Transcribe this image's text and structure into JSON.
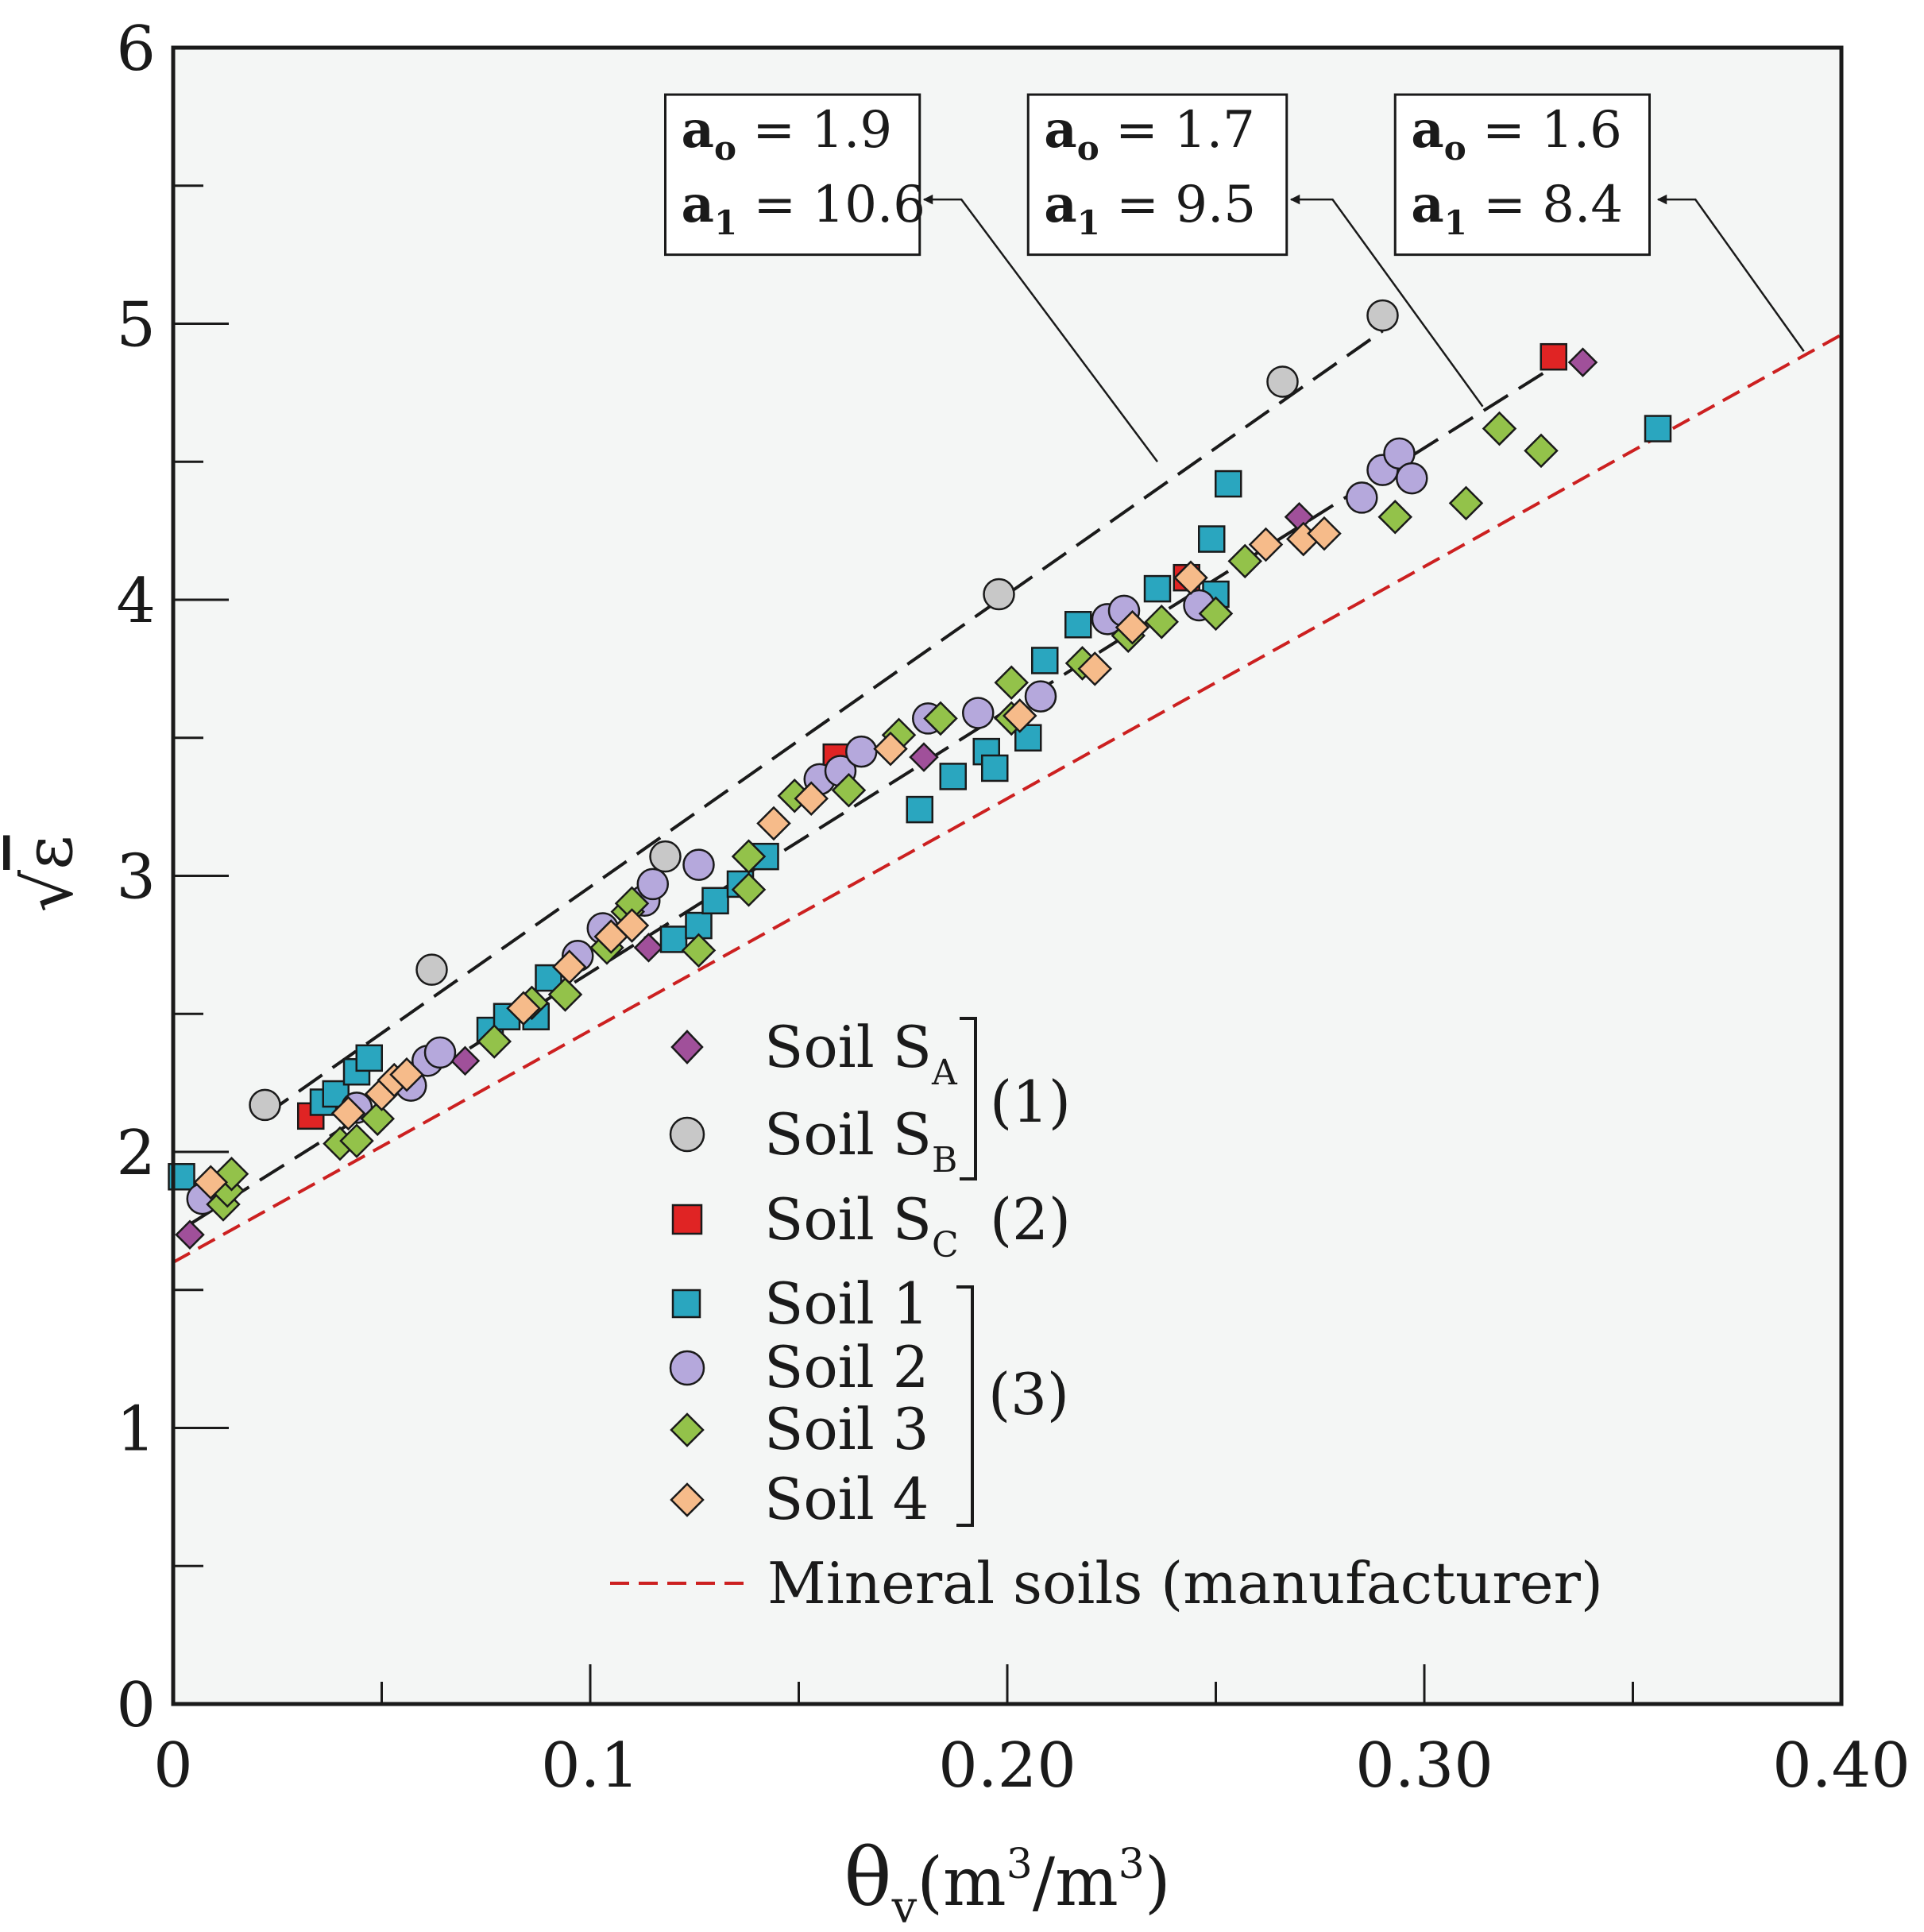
{
  "chart_data": {
    "type": "scatter",
    "title": "",
    "xlabel": {
      "symbol": "θ",
      "sub": "v",
      "unit_open": "(m",
      "unit_sup1": "3",
      "unit_mid": "/m",
      "unit_sup2": "3",
      "unit_close": ")"
    },
    "ylabel": {
      "radical": "√",
      "symbol": "ε"
    },
    "xlim": [
      0,
      0.4
    ],
    "ylim": [
      0,
      6
    ],
    "xticks": [
      {
        "value": 0,
        "label": "0"
      },
      {
        "value": 0.1,
        "label": "0.1"
      },
      {
        "value": 0.2,
        "label": "0.20"
      },
      {
        "value": 0.3,
        "label": "0.30"
      },
      {
        "value": 0.4,
        "label": "0.40"
      }
    ],
    "xminor": [
      0.05,
      0.15,
      0.25,
      0.35
    ],
    "yticks": [
      {
        "value": 0,
        "label": "0"
      },
      {
        "value": 1,
        "label": "1"
      },
      {
        "value": 2,
        "label": "2"
      },
      {
        "value": 3,
        "label": "3"
      },
      {
        "value": 4,
        "label": "4"
      },
      {
        "value": 5,
        "label": "5"
      },
      {
        "value": 6,
        "label": "6"
      }
    ],
    "yminor": [
      0.5,
      1.5,
      2.5,
      3.5,
      4.5,
      5.5
    ],
    "fit_lines": [
      {
        "name": "fit-1",
        "a0": 1.9,
        "a1": 10.6,
        "x": [
          0.022,
          0.29
        ],
        "color": "#1a1a1a",
        "dash": "36,16"
      },
      {
        "name": "fit-2",
        "a0": 1.7,
        "a1": 9.5,
        "x": [
          0.004,
          0.332
        ],
        "color": "#1a1a1a",
        "dash": "36,16"
      },
      {
        "name": "fit-3",
        "a0": 1.6,
        "a1": 8.4,
        "x": [
          0,
          0.4
        ],
        "color": "#cc2020",
        "dash": "24,12"
      }
    ],
    "annotations": [
      {
        "a0_label": "a",
        "a0_sub": "o",
        "a0_value": " = 1.9",
        "a1_label": "a",
        "a1_sub": "1",
        "a1_value": " = 10.6",
        "arrow_from": [
          0.236,
          4.5
        ],
        "arrow_elbow": [
          0.189,
          5.45
        ],
        "arrow_to": [
          0.18,
          5.45
        ],
        "box": [
          0.118,
          5.25,
          0.179,
          5.83
        ]
      },
      {
        "a0_label": "a",
        "a0_sub": "o",
        "a0_value": " = 1.7",
        "a1_label": "a",
        "a1_sub": "1",
        "a1_value": " = 9.5",
        "arrow_from": [
          0.314,
          4.7
        ],
        "arrow_elbow": [
          0.278,
          5.45
        ],
        "arrow_to": [
          0.268,
          5.45
        ],
        "box": [
          0.205,
          5.25,
          0.267,
          5.83
        ]
      },
      {
        "a0_label": "a",
        "a0_sub": "o",
        "a0_value": " = 1.6",
        "a1_label": "a",
        "a1_sub": "1",
        "a1_value": " = 8.4",
        "arrow_from": [
          0.391,
          4.9
        ],
        "arrow_elbow": [
          0.365,
          5.45
        ],
        "arrow_to": [
          0.356,
          5.45
        ],
        "box": [
          0.293,
          5.25,
          0.354,
          5.83
        ]
      }
    ],
    "series": [
      {
        "name": "Soil S",
        "sub": "A",
        "marker": "diamond-small",
        "fill": "#a0509a",
        "points": [
          [
            0.004,
            1.7
          ],
          [
            0.07,
            2.33
          ],
          [
            0.097,
            2.7
          ],
          [
            0.114,
            2.74
          ],
          [
            0.18,
            3.43
          ],
          [
            0.27,
            4.3
          ],
          [
            0.338,
            4.86
          ]
        ]
      },
      {
        "name": "Soil S",
        "sub": "B",
        "marker": "circle",
        "fill": "#c8c8c8",
        "points": [
          [
            0.022,
            2.17
          ],
          [
            0.062,
            2.66
          ],
          [
            0.118,
            3.07
          ],
          [
            0.198,
            4.02
          ],
          [
            0.266,
            4.79
          ],
          [
            0.29,
            5.03
          ]
        ]
      },
      {
        "name": "Soil S",
        "sub": "C",
        "marker": "square",
        "fill": "#e02424",
        "points": [
          [
            0.033,
            2.13
          ],
          [
            0.159,
            3.43
          ],
          [
            0.243,
            4.08
          ],
          [
            0.331,
            4.88
          ]
        ]
      },
      {
        "name": "Soil 1",
        "sub": "",
        "marker": "square",
        "fill": "#2aa6bf",
        "points": [
          [
            0.002,
            1.91
          ],
          [
            0.036,
            2.18
          ],
          [
            0.039,
            2.21
          ],
          [
            0.044,
            2.29
          ],
          [
            0.047,
            2.34
          ],
          [
            0.076,
            2.44
          ],
          [
            0.08,
            2.49
          ],
          [
            0.087,
            2.49
          ],
          [
            0.09,
            2.63
          ],
          [
            0.12,
            2.77
          ],
          [
            0.126,
            2.82
          ],
          [
            0.13,
            2.91
          ],
          [
            0.136,
            2.97
          ],
          [
            0.142,
            3.07
          ],
          [
            0.179,
            3.24
          ],
          [
            0.187,
            3.36
          ],
          [
            0.195,
            3.45
          ],
          [
            0.197,
            3.39
          ],
          [
            0.205,
            3.5
          ],
          [
            0.209,
            3.78
          ],
          [
            0.217,
            3.91
          ],
          [
            0.236,
            4.04
          ],
          [
            0.249,
            4.22
          ],
          [
            0.25,
            4.02
          ],
          [
            0.253,
            4.42
          ],
          [
            0.356,
            4.62
          ]
        ]
      },
      {
        "name": "Soil 2",
        "sub": "",
        "marker": "circle",
        "fill": "#b5a8dc",
        "points": [
          [
            0.007,
            1.83
          ],
          [
            0.044,
            2.16
          ],
          [
            0.057,
            2.24
          ],
          [
            0.061,
            2.33
          ],
          [
            0.064,
            2.36
          ],
          [
            0.097,
            2.71
          ],
          [
            0.103,
            2.81
          ],
          [
            0.113,
            2.91
          ],
          [
            0.115,
            2.97
          ],
          [
            0.126,
            3.04
          ],
          [
            0.155,
            3.35
          ],
          [
            0.16,
            3.38
          ],
          [
            0.165,
            3.45
          ],
          [
            0.181,
            3.57
          ],
          [
            0.193,
            3.59
          ],
          [
            0.208,
            3.65
          ],
          [
            0.224,
            3.93
          ],
          [
            0.228,
            3.96
          ],
          [
            0.246,
            3.98
          ],
          [
            0.285,
            4.37
          ],
          [
            0.29,
            4.47
          ],
          [
            0.294,
            4.53
          ],
          [
            0.297,
            4.44
          ]
        ]
      },
      {
        "name": "Soil 3",
        "sub": "",
        "marker": "diamond",
        "fill": "#93c24a",
        "points": [
          [
            0.012,
            1.81
          ],
          [
            0.013,
            1.86
          ],
          [
            0.014,
            1.92
          ],
          [
            0.04,
            2.03
          ],
          [
            0.044,
            2.04
          ],
          [
            0.049,
            2.12
          ],
          [
            0.077,
            2.4
          ],
          [
            0.086,
            2.54
          ],
          [
            0.094,
            2.57
          ],
          [
            0.104,
            2.74
          ],
          [
            0.109,
            2.87
          ],
          [
            0.11,
            2.9
          ],
          [
            0.126,
            2.73
          ],
          [
            0.138,
            2.95
          ],
          [
            0.138,
            3.07
          ],
          [
            0.149,
            3.29
          ],
          [
            0.162,
            3.31
          ],
          [
            0.174,
            3.51
          ],
          [
            0.184,
            3.57
          ],
          [
            0.201,
            3.57
          ],
          [
            0.201,
            3.7
          ],
          [
            0.218,
            3.77
          ],
          [
            0.229,
            3.87
          ],
          [
            0.237,
            3.92
          ],
          [
            0.25,
            3.95
          ],
          [
            0.257,
            4.14
          ],
          [
            0.293,
            4.3
          ],
          [
            0.31,
            4.35
          ],
          [
            0.318,
            4.62
          ],
          [
            0.328,
            4.54
          ]
        ]
      },
      {
        "name": "Soil 4",
        "sub": "",
        "marker": "diamond",
        "fill": "#f6bb8a",
        "points": [
          [
            0.009,
            1.89
          ],
          [
            0.042,
            2.14
          ],
          [
            0.05,
            2.21
          ],
          [
            0.053,
            2.26
          ],
          [
            0.056,
            2.28
          ],
          [
            0.084,
            2.52
          ],
          [
            0.095,
            2.67
          ],
          [
            0.105,
            2.78
          ],
          [
            0.11,
            2.82
          ],
          [
            0.144,
            3.19
          ],
          [
            0.153,
            3.28
          ],
          [
            0.172,
            3.46
          ],
          [
            0.203,
            3.58
          ],
          [
            0.221,
            3.75
          ],
          [
            0.23,
            3.9
          ],
          [
            0.244,
            4.08
          ],
          [
            0.262,
            4.2
          ],
          [
            0.271,
            4.22
          ],
          [
            0.276,
            4.24
          ]
        ]
      }
    ],
    "legend": {
      "position": "center-bottom",
      "items": [
        {
          "label": "Soil S",
          "sub": "A"
        },
        {
          "label": "Soil S",
          "sub": "B"
        },
        {
          "label": "Soil S",
          "sub": "C"
        },
        {
          "label": "Soil 1",
          "sub": ""
        },
        {
          "label": "Soil 2",
          "sub": ""
        },
        {
          "label": "Soil 3",
          "sub": ""
        },
        {
          "label": "Soil 4",
          "sub": ""
        }
      ],
      "groups": [
        "(1)",
        "(2)",
        "(3)"
      ],
      "manufacturer_label": "Mineral soils (manufacturer)"
    }
  }
}
